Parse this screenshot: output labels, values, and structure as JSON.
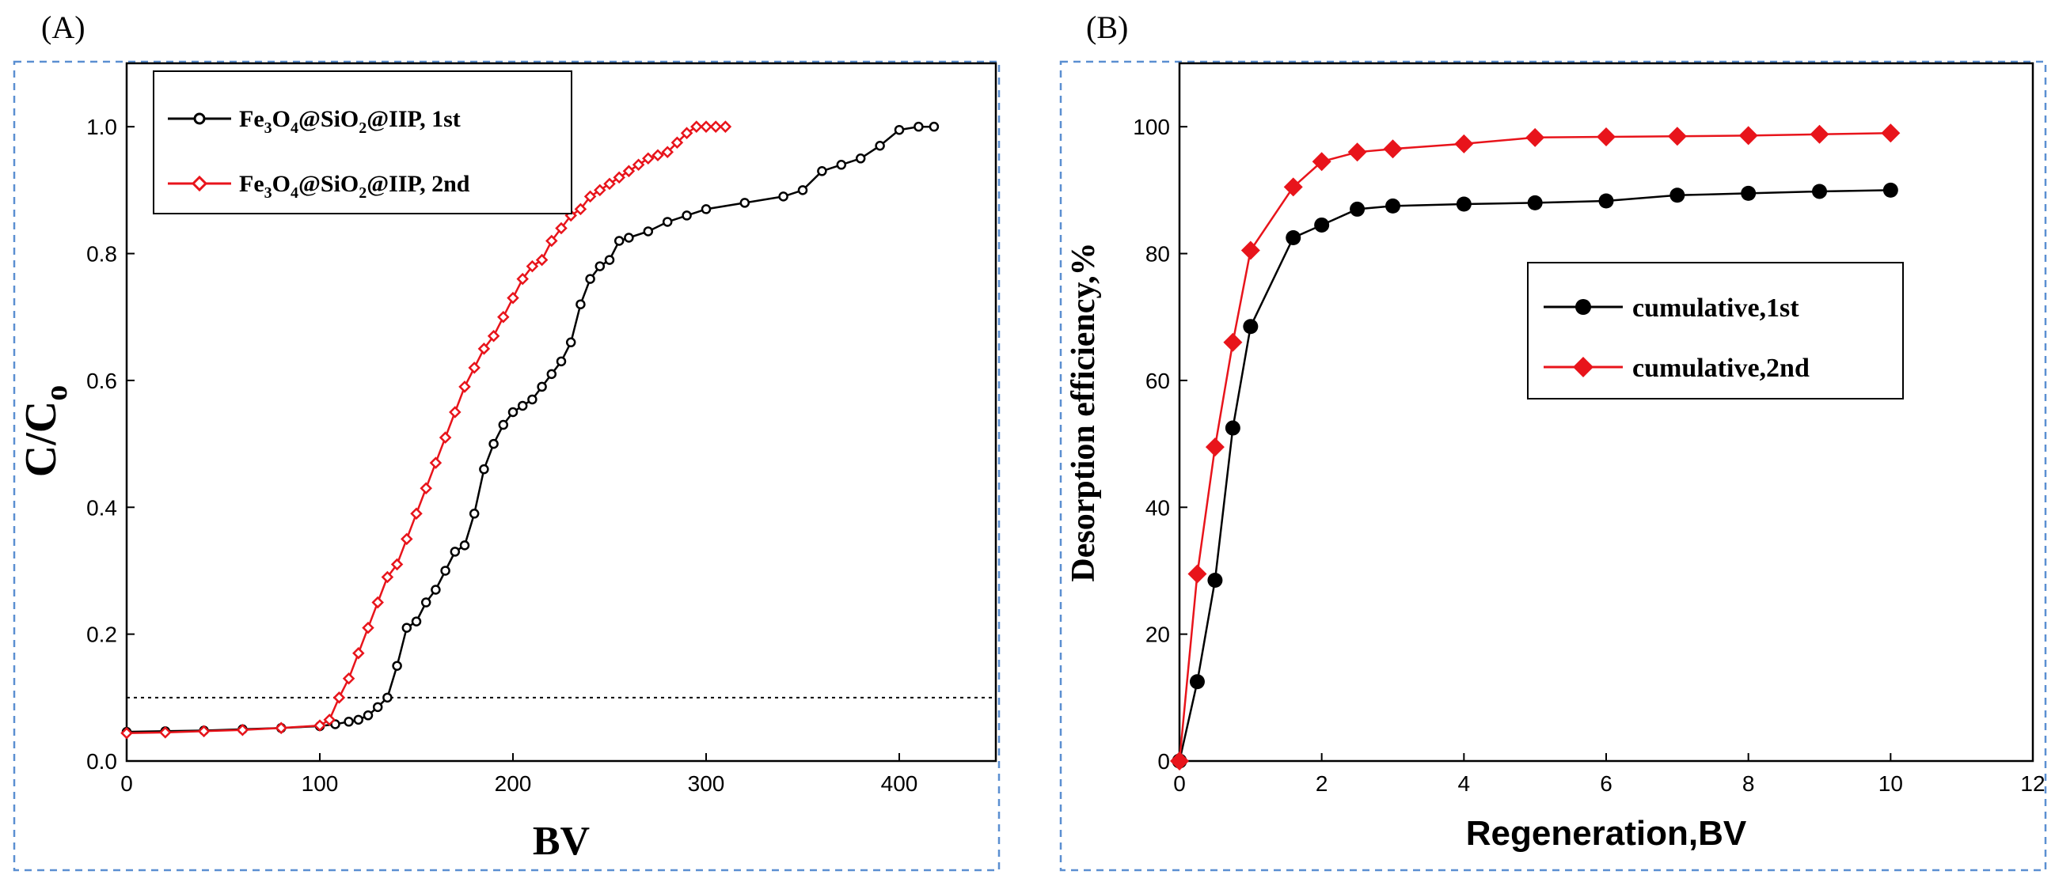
{
  "chart_data": [
    {
      "panel_label": "(A)",
      "type": "line",
      "xlabel": "BV",
      "ylabel": "C/C",
      "ylabel_sub": "o",
      "xlim": [
        0,
        450
      ],
      "ylim": [
        0,
        1.1
      ],
      "xticks": [
        "0",
        "100",
        "200",
        "300",
        "400"
      ],
      "yticks": [
        "0.0",
        "0.2",
        "0.4",
        "0.6",
        "0.8",
        "1.0"
      ],
      "reference_line": {
        "y": 0.1,
        "style": "dotted"
      },
      "legend": {
        "position": "top-left",
        "entries": [
          {
            "name": "Fe3O4@SiO2@IIP, 1st",
            "parts": [
              "Fe",
              "3",
              "O",
              "4",
              "@SiO",
              "2",
              "@IIP, 1st"
            ],
            "color": "#000000"
          },
          {
            "name": "Fe3O4@SiO2@IIP, 2nd",
            "parts": [
              "Fe",
              "3",
              "O",
              "4",
              "@SiO",
              "2",
              "@IIP, 2nd"
            ],
            "color": "#e8141b"
          }
        ]
      },
      "series": [
        {
          "name": "Fe3O4@SiO2@IIP, 1st",
          "color": "#000000",
          "marker": "open-circle",
          "x": [
            0,
            20,
            40,
            60,
            80,
            100,
            108,
            115,
            120,
            125,
            130,
            135,
            140,
            145,
            150,
            155,
            160,
            165,
            170,
            175,
            180,
            185,
            190,
            195,
            200,
            205,
            210,
            215,
            220,
            225,
            230,
            235,
            240,
            245,
            250,
            255,
            260,
            270,
            280,
            290,
            300,
            320,
            340,
            350,
            360,
            370,
            380,
            390,
            400,
            410,
            418
          ],
          "y": [
            0.046,
            0.047,
            0.048,
            0.05,
            0.052,
            0.055,
            0.058,
            0.062,
            0.065,
            0.072,
            0.085,
            0.1,
            0.15,
            0.21,
            0.22,
            0.25,
            0.27,
            0.3,
            0.33,
            0.34,
            0.39,
            0.46,
            0.5,
            0.53,
            0.55,
            0.56,
            0.57,
            0.59,
            0.61,
            0.63,
            0.66,
            0.72,
            0.76,
            0.78,
            0.79,
            0.82,
            0.825,
            0.835,
            0.85,
            0.86,
            0.87,
            0.88,
            0.89,
            0.9,
            0.93,
            0.94,
            0.95,
            0.97,
            0.995,
            1.0,
            1.0
          ]
        },
        {
          "name": "Fe3O4@SiO2@IIP, 2nd",
          "color": "#e8141b",
          "marker": "open-diamond",
          "x": [
            0,
            20,
            40,
            60,
            80,
            100,
            105,
            110,
            115,
            120,
            125,
            130,
            135,
            140,
            145,
            150,
            155,
            160,
            165,
            170,
            175,
            180,
            185,
            190,
            195,
            200,
            205,
            210,
            215,
            220,
            225,
            230,
            235,
            240,
            245,
            250,
            255,
            260,
            265,
            270,
            275,
            280,
            285,
            290,
            295,
            300,
            305,
            310
          ],
          "y": [
            0.044,
            0.045,
            0.047,
            0.049,
            0.052,
            0.056,
            0.065,
            0.1,
            0.13,
            0.17,
            0.21,
            0.25,
            0.29,
            0.31,
            0.35,
            0.39,
            0.43,
            0.47,
            0.51,
            0.55,
            0.59,
            0.62,
            0.65,
            0.67,
            0.7,
            0.73,
            0.76,
            0.78,
            0.79,
            0.82,
            0.84,
            0.86,
            0.87,
            0.89,
            0.9,
            0.91,
            0.92,
            0.93,
            0.94,
            0.95,
            0.955,
            0.96,
            0.975,
            0.99,
            1.0,
            1.0,
            1.0,
            1.0
          ]
        }
      ]
    },
    {
      "panel_label": "(B)",
      "type": "line",
      "xlabel": "Regeneration,BV",
      "ylabel": "Desorption efficiency,%",
      "xlim": [
        0,
        12
      ],
      "ylim": [
        0,
        110
      ],
      "xticks": [
        "0",
        "2",
        "4",
        "6",
        "8",
        "10",
        "12"
      ],
      "yticks": [
        "0",
        "20",
        "40",
        "60",
        "80",
        "100"
      ],
      "legend": {
        "position": "center-right",
        "entries": [
          {
            "name": "cumulative,1st",
            "color": "#000000"
          },
          {
            "name": "cumulative,2nd",
            "color": "#e8141b"
          }
        ]
      },
      "series": [
        {
          "name": "cumulative,1st",
          "color": "#000000",
          "marker": "filled-circle",
          "x": [
            0,
            0.25,
            0.5,
            0.75,
            1,
            1.6,
            2,
            2.5,
            3,
            4,
            5,
            6,
            7,
            8,
            9,
            10
          ],
          "y": [
            0,
            12.5,
            28.5,
            52.5,
            68.5,
            82.5,
            84.5,
            87,
            87.5,
            87.8,
            88,
            88.3,
            89.2,
            89.5,
            89.8,
            90
          ]
        },
        {
          "name": "cumulative,2nd",
          "color": "#e8141b",
          "marker": "filled-diamond",
          "x": [
            0,
            0.25,
            0.5,
            0.75,
            1,
            1.6,
            2,
            2.5,
            3,
            4,
            5,
            6,
            7,
            8,
            9,
            10
          ],
          "y": [
            0,
            29.5,
            49.5,
            66,
            80.5,
            90.5,
            94.5,
            96,
            96.5,
            97.3,
            98.3,
            98.4,
            98.5,
            98.6,
            98.8,
            99
          ]
        }
      ]
    }
  ]
}
